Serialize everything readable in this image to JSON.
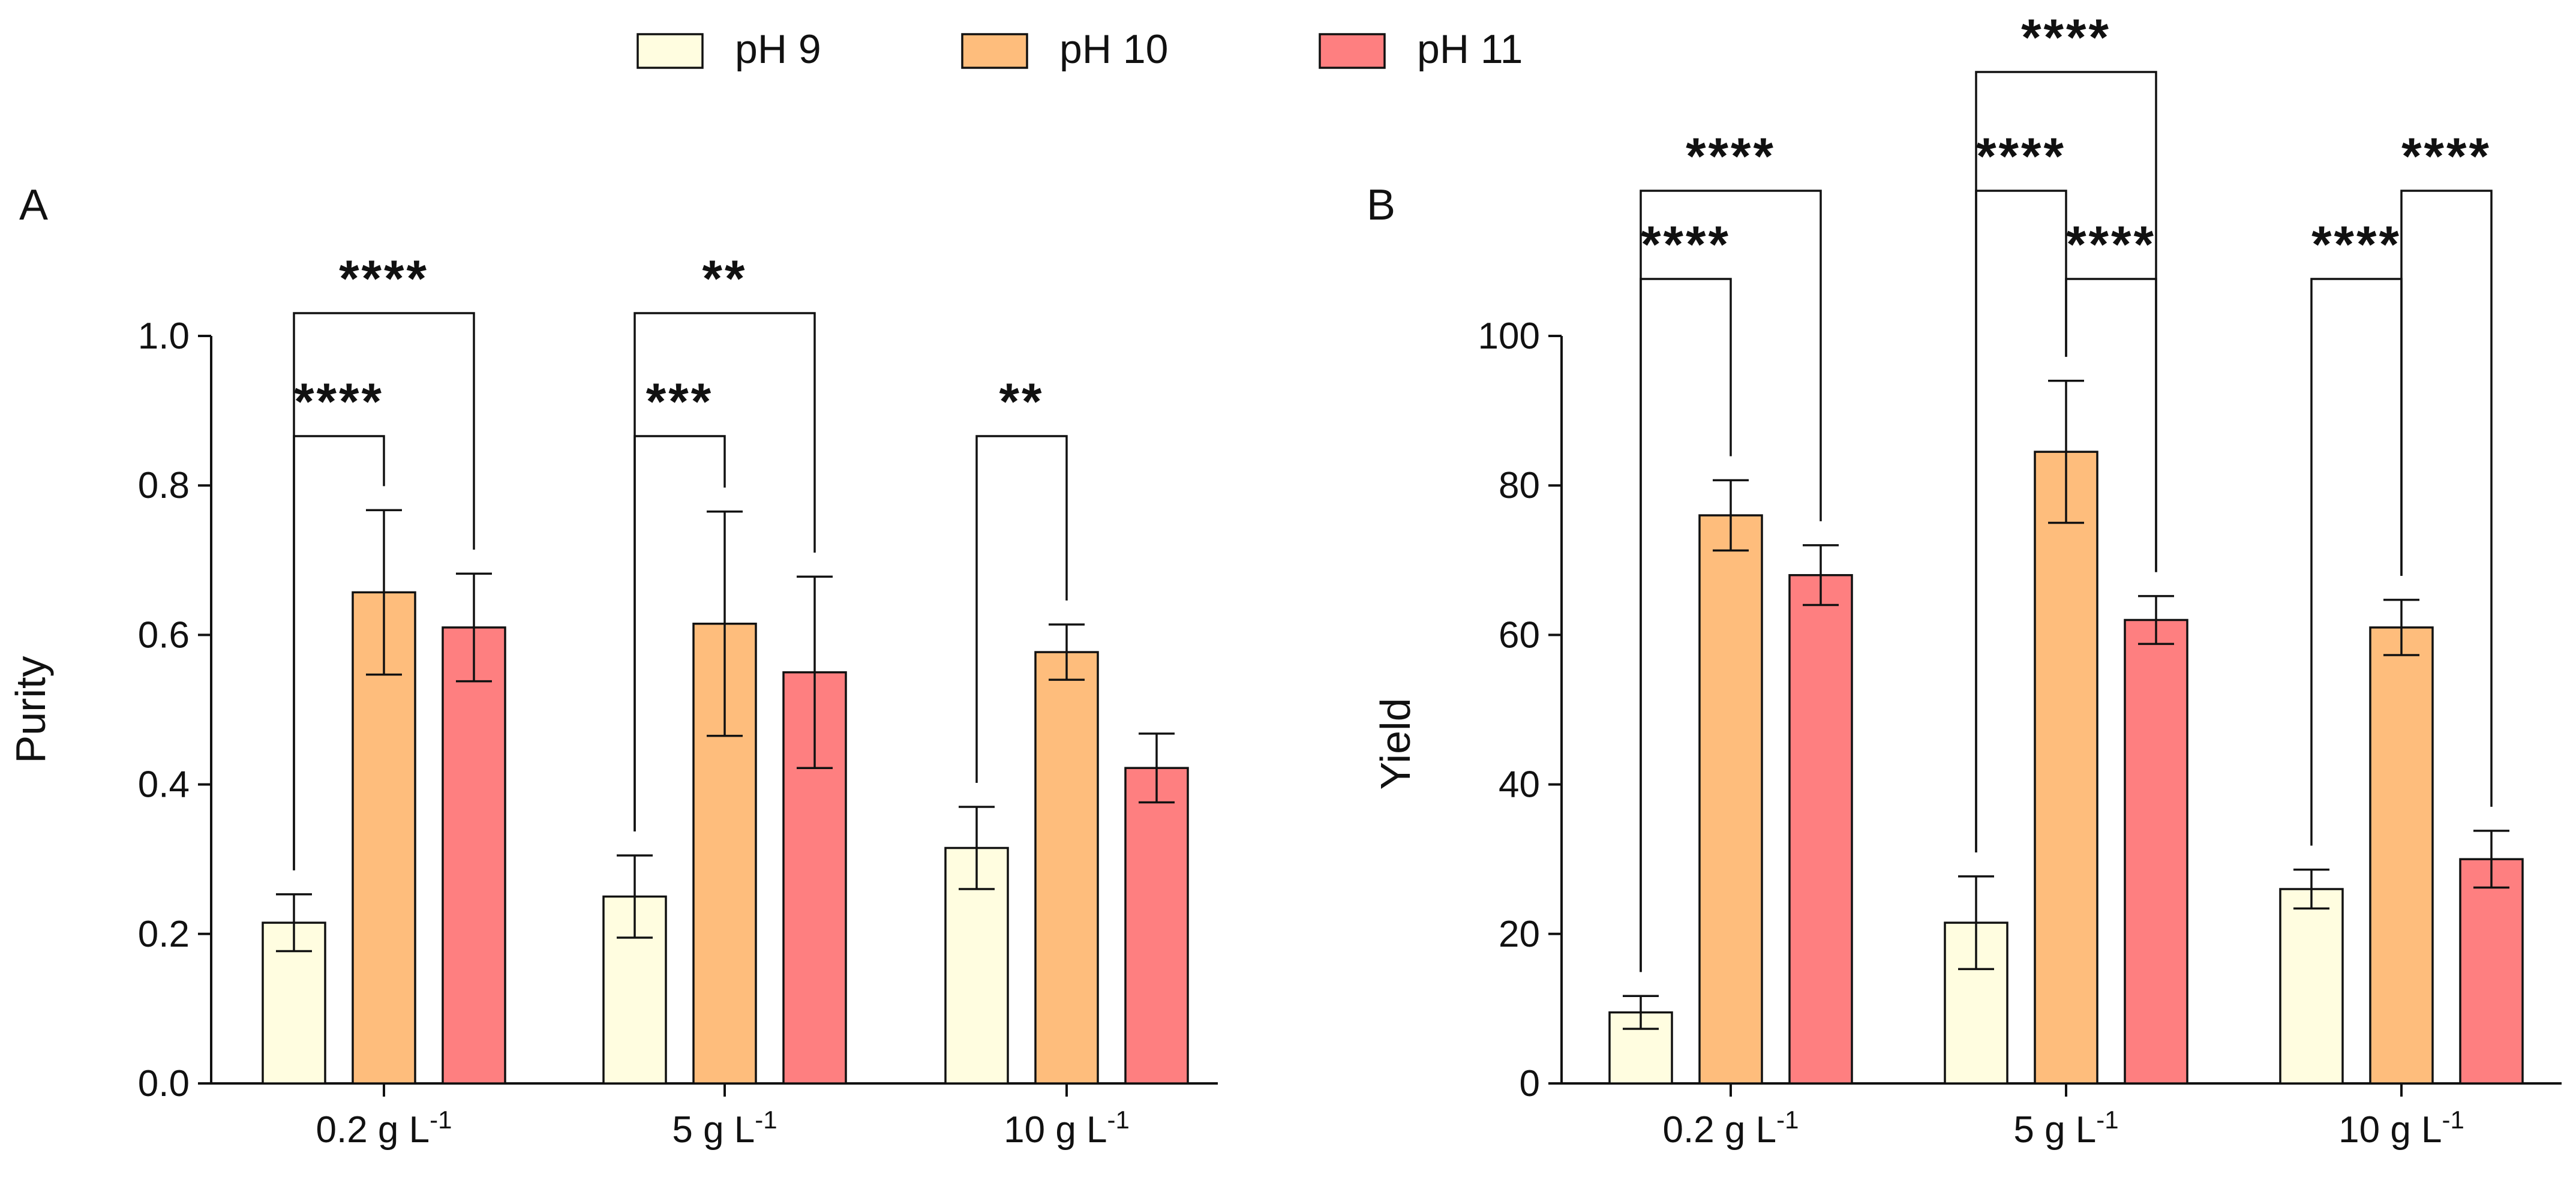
{
  "legend": {
    "items": [
      {
        "label": "pH 9",
        "color": "#FFFDE0"
      },
      {
        "label": "pH 10",
        "color": "#FEBD7C"
      },
      {
        "label": "pH 11",
        "color": "#FE7F80"
      }
    ]
  },
  "chart_data": [
    {
      "panel": "A",
      "type": "bar",
      "ylabel": "Purity",
      "xlabel": "",
      "ylim": [
        0,
        1.0
      ],
      "yticks": [
        "0.0",
        "0.2",
        "0.4",
        "0.6",
        "0.8",
        "1.0"
      ],
      "categories": [
        "0.2 g L",
        "5 g L",
        "10 g L"
      ],
      "category_superscript": "-1",
      "series": [
        {
          "name": "pH 9",
          "values": [
            0.215,
            0.25,
            0.315
          ],
          "errors": [
            0.038,
            0.055,
            0.055
          ]
        },
        {
          "name": "pH 10",
          "values": [
            0.657,
            0.615,
            0.577
          ],
          "errors": [
            0.11,
            0.15,
            0.037
          ]
        },
        {
          "name": "pH 11",
          "values": [
            0.61,
            0.55,
            0.422
          ],
          "errors": [
            0.072,
            0.128,
            0.046
          ]
        }
      ],
      "significance": [
        {
          "group": 0,
          "from": 0,
          "to": 1,
          "label": "****",
          "level": 0
        },
        {
          "group": 0,
          "from": 0,
          "to": 2,
          "label": "****",
          "level": 1
        },
        {
          "group": 1,
          "from": 0,
          "to": 1,
          "label": "***",
          "level": 0
        },
        {
          "group": 1,
          "from": 0,
          "to": 2,
          "label": "**",
          "level": 1
        },
        {
          "group": 2,
          "from": 0,
          "to": 1,
          "label": "**",
          "level": 0
        }
      ]
    },
    {
      "panel": "B",
      "type": "bar",
      "ylabel": "Yield",
      "xlabel": "",
      "ylim": [
        0,
        100
      ],
      "yticks": [
        "0",
        "20",
        "40",
        "60",
        "80",
        "100"
      ],
      "categories": [
        "0.2 g L",
        "5 g L",
        "10 g L"
      ],
      "category_superscript": "-1",
      "series": [
        {
          "name": "pH 9",
          "values": [
            9.5,
            21.5,
            26
          ],
          "errors": [
            2.2,
            6.2,
            2.6
          ]
        },
        {
          "name": "pH 10",
          "values": [
            76,
            84.5,
            61
          ],
          "errors": [
            4.7,
            9.5,
            3.7
          ]
        },
        {
          "name": "pH 11",
          "values": [
            68,
            62,
            30
          ],
          "errors": [
            4.0,
            3.2,
            3.8
          ]
        }
      ],
      "significance": [
        {
          "group": 0,
          "from": 0,
          "to": 1,
          "label": "****",
          "level": 0
        },
        {
          "group": 0,
          "from": 0,
          "to": 2,
          "label": "****",
          "level": 1
        },
        {
          "group": 1,
          "from": 1,
          "to": 2,
          "label": "****",
          "level": 0
        },
        {
          "group": 1,
          "from": 0,
          "to": 1,
          "label": "****",
          "level": 1
        },
        {
          "group": 1,
          "from": 0,
          "to": 2,
          "label": "****",
          "level": 2
        },
        {
          "group": 2,
          "from": 0,
          "to": 1,
          "label": "****",
          "level": 0
        },
        {
          "group": 2,
          "from": 1,
          "to": 2,
          "label": "****",
          "level": 1
        }
      ]
    }
  ]
}
